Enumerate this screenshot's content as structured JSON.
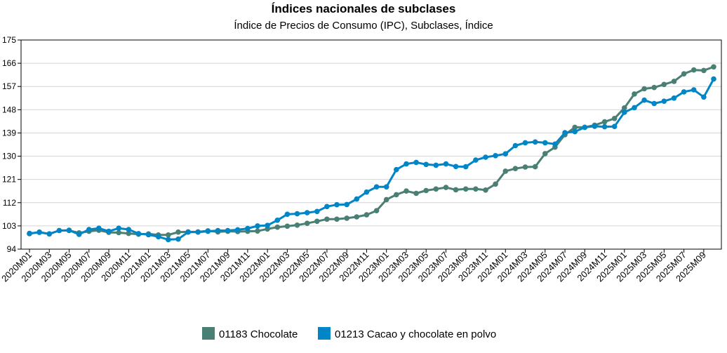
{
  "chart_data": {
    "type": "line",
    "title": "Índices nacionales de subclases",
    "subtitle": "Índice de Precios de Consumo (IPC), Subclases, Índice",
    "xlabel": "",
    "ylabel": "",
    "ylim": [
      94,
      175
    ],
    "yticks": [
      "175",
      "166",
      "157",
      "148",
      "139",
      "130",
      "121",
      "112",
      "103",
      "94"
    ],
    "ytick_values": [
      175,
      166,
      157,
      148,
      139,
      130,
      121,
      112,
      103,
      94
    ],
    "grid": true,
    "legend_position": "bottom",
    "x": [
      "2020M01",
      "2020M02",
      "2020M03",
      "2020M04",
      "2020M05",
      "2020M06",
      "2020M07",
      "2020M08",
      "2020M09",
      "2020M10",
      "2020M11",
      "2020M12",
      "2021M01",
      "2021M02",
      "2021M03",
      "2021M04",
      "2021M05",
      "2021M06",
      "2021M07",
      "2021M08",
      "2021M09",
      "2021M10",
      "2021M11",
      "2021M12",
      "2022M01",
      "2022M02",
      "2022M03",
      "2022M04",
      "2022M05",
      "2022M06",
      "2022M07",
      "2022M08",
      "2022M09",
      "2022M10",
      "2022M11",
      "2022M12",
      "2023M01",
      "2023M02",
      "2023M03",
      "2023M04",
      "2023M05",
      "2023M06",
      "2023M07",
      "2023M08",
      "2023M09",
      "2023M10",
      "2023M11",
      "2023M12",
      "2024M01",
      "2024M02",
      "2024M03",
      "2024M04",
      "2024M05",
      "2024M06",
      "2024M07",
      "2024M08",
      "2024M09",
      "2024M10",
      "2024M11",
      "2024M12",
      "2025M01",
      "2025M02",
      "2025M03",
      "2025M04",
      "2025M05",
      "2025M06",
      "2025M07",
      "2025M08",
      "2025M09",
      "2025M10"
    ],
    "xtick_labels": [
      "2020M01",
      "2020M03",
      "2020M05",
      "2020M07",
      "2020M09",
      "2020M11",
      "2021M01",
      "2021M03",
      "2021M05",
      "2021M07",
      "2021M09",
      "2021M11",
      "2022M01",
      "2022M03",
      "2022M05",
      "2022M07",
      "2022M09",
      "2022M11",
      "2023M01",
      "2023M03",
      "2023M05",
      "2023M07",
      "2023M09",
      "2023M11",
      "2024M01",
      "2024M03",
      "2024M05",
      "2024M07",
      "2024M09",
      "2024M11",
      "2025M01",
      "2025M03",
      "2025M05",
      "2025M07",
      "2025M09"
    ],
    "series": [
      {
        "name": "01183 Chocolate",
        "color": "#4a7f74",
        "values": [
          100.0,
          100.6,
          99.9,
          101.2,
          101.2,
          100.3,
          100.9,
          101.3,
          100.5,
          100.4,
          100.1,
          99.8,
          99.9,
          99.5,
          99.5,
          100.6,
          100.7,
          100.7,
          101.1,
          100.7,
          100.9,
          100.8,
          100.9,
          101.0,
          101.8,
          102.5,
          102.9,
          103.3,
          104.0,
          104.8,
          105.6,
          105.6,
          106.0,
          106.5,
          107.3,
          108.9,
          113.2,
          115.1,
          116.5,
          115.6,
          116.7,
          117.3,
          117.9,
          117.0,
          117.3,
          117.3,
          116.9,
          119.2,
          124.2,
          125.2,
          125.8,
          125.9,
          131.0,
          133.5,
          138.3,
          141.2,
          141.2,
          142.0,
          143.3,
          144.6,
          148.7,
          154.1,
          156.1,
          156.6,
          157.8,
          159.0,
          161.9,
          163.4,
          163.2,
          164.6
        ]
      },
      {
        "name": "01213 Cacao y chocolate en polvo",
        "color": "#0085c7",
        "values": [
          100.1,
          100.5,
          99.9,
          101.2,
          101.3,
          99.7,
          101.6,
          102.1,
          100.9,
          102.1,
          101.6,
          100.0,
          99.6,
          98.8,
          97.7,
          97.9,
          100.6,
          100.6,
          100.9,
          101.2,
          101.2,
          101.5,
          102.0,
          103.0,
          103.2,
          105.2,
          107.5,
          107.7,
          108.1,
          108.6,
          110.5,
          111.2,
          111.3,
          113.4,
          116.1,
          118.1,
          118.1,
          124.8,
          127.0,
          127.6,
          126.8,
          126.5,
          127.0,
          126.0,
          125.9,
          128.5,
          129.6,
          130.2,
          130.9,
          134.1,
          135.2,
          135.5,
          135.2,
          134.7,
          139.1,
          139.5,
          141.2,
          141.6,
          141.4,
          141.5,
          147.0,
          148.8,
          151.7,
          150.4,
          151.3,
          152.5,
          154.9,
          155.7,
          152.9,
          159.9
        ]
      }
    ]
  }
}
